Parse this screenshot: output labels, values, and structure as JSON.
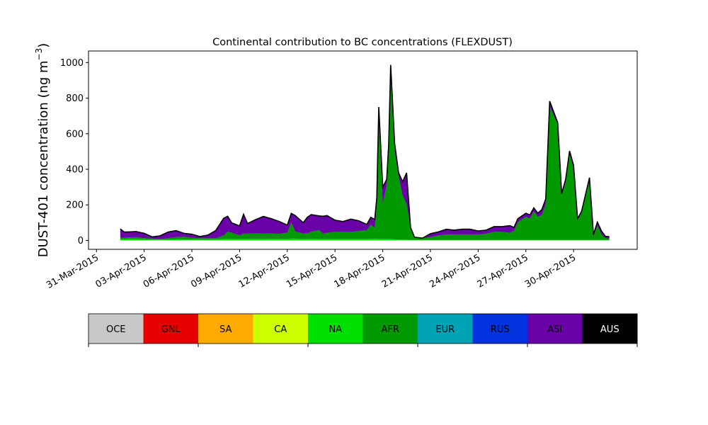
{
  "chart_data": {
    "type": "area",
    "title": "Continental contribution to BC concentrations (FLEXDUST)",
    "ylabel_main": "DUST-401 concentration (ng m",
    "ylabel_sup": "−3",
    "ylabel_tail": ")",
    "xlabel": "",
    "ylim": [
      -50,
      1065
    ],
    "yticks": [
      0,
      200,
      400,
      600,
      800,
      1000
    ],
    "xlim": [
      "2015-03-30T12:00",
      "2015-05-04T00:00"
    ],
    "xtick_labels": [
      "31-Mar-2015",
      "03-Apr-2015",
      "06-Apr-2015",
      "09-Apr-2015",
      "12-Apr-2015",
      "15-Apr-2015",
      "18-Apr-2015",
      "21-Apr-2015",
      "24-Apr-2015",
      "27-Apr-2015",
      "30-Apr-2015"
    ],
    "xticks": [
      "2015-03-31",
      "2015-04-03",
      "2015-04-06",
      "2015-04-09",
      "2015-04-12",
      "2015-04-15",
      "2015-04-18",
      "2015-04-21",
      "2015-04-24",
      "2015-04-27",
      "2015-04-30"
    ],
    "grid": false,
    "x": [
      "2015-04-01T12:00",
      "2015-04-01T18:00",
      "2015-04-02T00:00",
      "2015-04-02T12:00",
      "2015-04-03T00:00",
      "2015-04-03T12:00",
      "2015-04-04T00:00",
      "2015-04-04T12:00",
      "2015-04-05T00:00",
      "2015-04-05T12:00",
      "2015-04-06T00:00",
      "2015-04-06T12:00",
      "2015-04-07T00:00",
      "2015-04-07T12:00",
      "2015-04-08T00:00",
      "2015-04-08T06:00",
      "2015-04-08T12:00",
      "2015-04-09T00:00",
      "2015-04-09T06:00",
      "2015-04-09T12:00",
      "2015-04-10T00:00",
      "2015-04-10T12:00",
      "2015-04-11T00:00",
      "2015-04-11T12:00",
      "2015-04-12T00:00",
      "2015-04-12T06:00",
      "2015-04-12T12:00",
      "2015-04-13T00:00",
      "2015-04-13T06:00",
      "2015-04-13T12:00",
      "2015-04-14T00:00",
      "2015-04-14T06:00",
      "2015-04-14T12:00",
      "2015-04-15T00:00",
      "2015-04-15T12:00",
      "2015-04-16T00:00",
      "2015-04-16T12:00",
      "2015-04-17T00:00",
      "2015-04-17T06:00",
      "2015-04-17T12:00",
      "2015-04-17T15:00",
      "2015-04-17T18:00",
      "2015-04-18T00:00",
      "2015-04-18T06:00",
      "2015-04-18T09:00",
      "2015-04-18T12:00",
      "2015-04-18T18:00",
      "2015-04-19T00:00",
      "2015-04-19T06:00",
      "2015-04-19T12:00",
      "2015-04-19T18:00",
      "2015-04-20T00:00",
      "2015-04-20T12:00",
      "2015-04-21T00:00",
      "2015-04-21T12:00",
      "2015-04-22T00:00",
      "2015-04-22T12:00",
      "2015-04-23T00:00",
      "2015-04-23T12:00",
      "2015-04-24T00:00",
      "2015-04-24T12:00",
      "2015-04-25T00:00",
      "2015-04-25T12:00",
      "2015-04-26T00:00",
      "2015-04-26T06:00",
      "2015-04-26T12:00",
      "2015-04-27T00:00",
      "2015-04-27T06:00",
      "2015-04-27T12:00",
      "2015-04-27T18:00",
      "2015-04-28T00:00",
      "2015-04-28T06:00",
      "2015-04-28T12:00",
      "2015-04-29T00:00",
      "2015-04-29T06:00",
      "2015-04-29T12:00",
      "2015-04-29T18:00",
      "2015-04-30T00:00",
      "2015-04-30T06:00",
      "2015-04-30T12:00",
      "2015-05-01T00:00",
      "2015-05-01T06:00",
      "2015-05-01T12:00",
      "2015-05-01T18:00",
      "2015-05-02T00:00",
      "2015-05-02T06:00"
    ],
    "series": [
      {
        "name": "OCE",
        "color": "#c8c8c8",
        "values": [
          0,
          0,
          0,
          0,
          0,
          0,
          0,
          0,
          0,
          0,
          0,
          0,
          0,
          0,
          0,
          0,
          0,
          0,
          0,
          0,
          0,
          0,
          0,
          0,
          0,
          0,
          0,
          0,
          0,
          0,
          0,
          0,
          0,
          0,
          0,
          0,
          0,
          0,
          0,
          0,
          0,
          0,
          0,
          0,
          0,
          0,
          0,
          0,
          0,
          0,
          0,
          0,
          0,
          0,
          0,
          0,
          0,
          0,
          0,
          0,
          0,
          0,
          0,
          0,
          0,
          0,
          0,
          0,
          0,
          0,
          0,
          0,
          0,
          0,
          0,
          0,
          0,
          0,
          0,
          0,
          0,
          0,
          0,
          0,
          0,
          0
        ]
      },
      {
        "name": "GNL",
        "color": "#e60000",
        "values": [
          0,
          0,
          0,
          0,
          0,
          0,
          0,
          0,
          0,
          0,
          0,
          0,
          0,
          0,
          0,
          0,
          0,
          0,
          0,
          0,
          0,
          0,
          0,
          0,
          0,
          0,
          0,
          0,
          0,
          0,
          0,
          0,
          0,
          0,
          0,
          0,
          0,
          0,
          0,
          0,
          0,
          0,
          0,
          0,
          0,
          0,
          0,
          0,
          0,
          0,
          0,
          0,
          0,
          0,
          0,
          0,
          0,
          0,
          0,
          0,
          0,
          0,
          0,
          0,
          0,
          0,
          0,
          0,
          0,
          0,
          0,
          0,
          0,
          0,
          0,
          0,
          0,
          0,
          0,
          0,
          0,
          0,
          0,
          0,
          0,
          0
        ]
      },
      {
        "name": "SA",
        "color": "#ffaa00",
        "values": [
          0,
          0,
          0,
          0,
          0,
          0,
          0,
          0,
          0,
          0,
          0,
          0,
          0,
          0,
          0,
          0,
          0,
          0,
          0,
          0,
          0,
          0,
          0,
          0,
          0,
          0,
          0,
          0,
          0,
          0,
          0,
          0,
          0,
          0,
          0,
          0,
          0,
          0,
          0,
          0,
          0,
          0,
          0,
          0,
          0,
          0,
          0,
          0,
          0,
          0,
          0,
          0,
          0,
          0,
          0,
          0,
          0,
          0,
          0,
          0,
          0,
          0,
          0,
          0,
          0,
          0,
          0,
          0,
          0,
          0,
          0,
          0,
          0,
          0,
          0,
          0,
          0,
          0,
          0,
          0,
          0,
          0,
          0,
          0,
          0,
          0
        ]
      },
      {
        "name": "CA",
        "color": "#ccff00",
        "values": [
          0,
          0,
          0,
          0,
          0,
          0,
          0,
          0,
          0,
          0,
          0,
          0,
          0,
          0,
          0,
          0,
          0,
          0,
          0,
          0,
          0,
          0,
          0,
          0,
          0,
          0,
          0,
          0,
          0,
          0,
          0,
          0,
          0,
          0,
          0,
          0,
          0,
          0,
          0,
          0,
          0,
          0,
          0,
          0,
          0,
          0,
          0,
          0,
          0,
          0,
          0,
          0,
          0,
          0,
          0,
          0,
          0,
          0,
          0,
          0,
          0,
          0,
          0,
          0,
          0,
          0,
          0,
          0,
          0,
          0,
          0,
          0,
          0,
          0,
          0,
          0,
          0,
          0,
          0,
          0,
          0,
          0,
          0,
          0,
          0,
          0
        ]
      },
      {
        "name": "NA",
        "color": "#00e000",
        "values": [
          8,
          7,
          9,
          8,
          6,
          5,
          4,
          5,
          6,
          6,
          5,
          5,
          6,
          6,
          8,
          9,
          8,
          8,
          9,
          8,
          9,
          8,
          9,
          9,
          9,
          10,
          10,
          9,
          9,
          9,
          8,
          8,
          8,
          8,
          8,
          8,
          8,
          8,
          9,
          10,
          9,
          8,
          8,
          8,
          8,
          7,
          6,
          5,
          4,
          4,
          3,
          3,
          3,
          3,
          3,
          3,
          3,
          3,
          3,
          3,
          3,
          3,
          3,
          3,
          3,
          3,
          3,
          3,
          3,
          3,
          3,
          3,
          3,
          3,
          3,
          3,
          3,
          3,
          3,
          3,
          3,
          3,
          3,
          3,
          3,
          3
        ]
      },
      {
        "name": "AFR",
        "color": "#009900",
        "values": [
          8,
          8,
          8,
          10,
          7,
          5,
          4,
          7,
          12,
          15,
          10,
          8,
          6,
          6,
          20,
          40,
          35,
          20,
          30,
          30,
          30,
          30,
          30,
          28,
          35,
          90,
          40,
          30,
          30,
          40,
          50,
          30,
          35,
          40,
          40,
          40,
          45,
          50,
          80,
          60,
          180,
          720,
          200,
          300,
          480,
          900,
          500,
          350,
          250,
          200,
          70,
          15,
          10,
          15,
          25,
          30,
          30,
          30,
          30,
          30,
          35,
          45,
          45,
          40,
          50,
          100,
          130,
          120,
          160,
          130,
          140,
          200,
          750,
          650,
          250,
          320,
          480,
          400,
          110,
          150,
          330,
          20,
          80,
          30,
          10,
          8
        ]
      },
      {
        "name": "EUR",
        "color": "#00a3b5",
        "values": [
          0,
          0,
          0,
          0,
          0,
          0,
          0,
          0,
          0,
          0,
          0,
          0,
          0,
          0,
          0,
          0,
          0,
          0,
          0,
          0,
          0,
          0,
          0,
          0,
          0,
          0,
          0,
          0,
          0,
          0,
          0,
          0,
          0,
          0,
          0,
          0,
          0,
          0,
          0,
          0,
          0,
          0,
          0,
          0,
          0,
          0,
          0,
          0,
          0,
          0,
          0,
          0,
          0,
          0,
          0,
          0,
          0,
          0,
          0,
          0,
          0,
          0,
          0,
          0,
          0,
          0,
          0,
          0,
          0,
          0,
          0,
          0,
          0,
          0,
          0,
          0,
          0,
          0,
          0,
          0,
          0,
          0,
          0,
          0,
          0,
          0
        ]
      },
      {
        "name": "RUS",
        "color": "#0033dd",
        "values": [
          0,
          0,
          0,
          0,
          0,
          0,
          0,
          0,
          0,
          0,
          0,
          0,
          0,
          0,
          0,
          0,
          0,
          0,
          0,
          0,
          0,
          0,
          0,
          0,
          0,
          0,
          0,
          0,
          0,
          0,
          0,
          0,
          0,
          0,
          0,
          0,
          0,
          0,
          0,
          0,
          0,
          0,
          0,
          0,
          0,
          0,
          0,
          0,
          0,
          0,
          0,
          0,
          0,
          0,
          0,
          0,
          0,
          0,
          0,
          0,
          0,
          0,
          0,
          0,
          0,
          0,
          0,
          0,
          0,
          0,
          0,
          0,
          0,
          0,
          0,
          0,
          0,
          0,
          0,
          0,
          0,
          0,
          0,
          0,
          0,
          0
        ]
      },
      {
        "name": "ASI",
        "color": "#6a00a8",
        "values": [
          49,
          32,
          31,
          32,
          27,
          10,
          18,
          35,
          37,
          19,
          20,
          9,
          18,
          44,
          97,
          87,
          56,
          54,
          108,
          57,
          78,
          97,
          83,
          69,
          42,
          52,
          90,
          61,
          90,
          96,
          80,
          98,
          97,
          66,
          58,
          72,
          57,
          32,
          41,
          48,
          51,
          22,
          92,
          35,
          52,
          80,
          40,
          25,
          76,
          176,
          0,
          0,
          0,
          20,
          20,
          30,
          25,
          30,
          30,
          20,
          20,
          30,
          30,
          40,
          20,
          20,
          20,
          20,
          20,
          20,
          30,
          30,
          30,
          10,
          10,
          20,
          20,
          20,
          10,
          10,
          20,
          10,
          20,
          20,
          10,
          10
        ]
      },
      {
        "name": "AUS",
        "color": "#000000",
        "values": [
          0,
          0,
          0,
          0,
          0,
          0,
          0,
          0,
          0,
          0,
          0,
          0,
          0,
          0,
          0,
          0,
          0,
          0,
          0,
          0,
          0,
          0,
          0,
          0,
          0,
          0,
          0,
          0,
          0,
          0,
          0,
          0,
          0,
          0,
          0,
          0,
          0,
          0,
          0,
          0,
          0,
          0,
          0,
          0,
          0,
          0,
          0,
          0,
          0,
          0,
          0,
          0,
          0,
          0,
          0,
          0,
          0,
          0,
          0,
          0,
          0,
          0,
          0,
          0,
          0,
          0,
          0,
          0,
          0,
          0,
          0,
          0,
          0,
          0,
          0,
          0,
          0,
          0,
          0,
          0,
          0,
          0,
          0,
          0,
          0,
          0
        ]
      }
    ],
    "legend": {
      "placement": "bottom",
      "entries": [
        {
          "label": "OCE",
          "color": "#c8c8c8",
          "text_color": "#000000"
        },
        {
          "label": "GNL",
          "color": "#e60000",
          "text_color": "#000000"
        },
        {
          "label": "SA",
          "color": "#ffaa00",
          "text_color": "#000000"
        },
        {
          "label": "CA",
          "color": "#ccff00",
          "text_color": "#000000"
        },
        {
          "label": "NA",
          "color": "#00e000",
          "text_color": "#000000"
        },
        {
          "label": "AFR",
          "color": "#009900",
          "text_color": "#000000"
        },
        {
          "label": "EUR",
          "color": "#00a3b5",
          "text_color": "#000000"
        },
        {
          "label": "RUS",
          "color": "#0033dd",
          "text_color": "#000000"
        },
        {
          "label": "ASI",
          "color": "#6a00a8",
          "text_color": "#000000"
        },
        {
          "label": "AUS",
          "color": "#000000",
          "text_color": "#ffffff"
        }
      ]
    }
  }
}
